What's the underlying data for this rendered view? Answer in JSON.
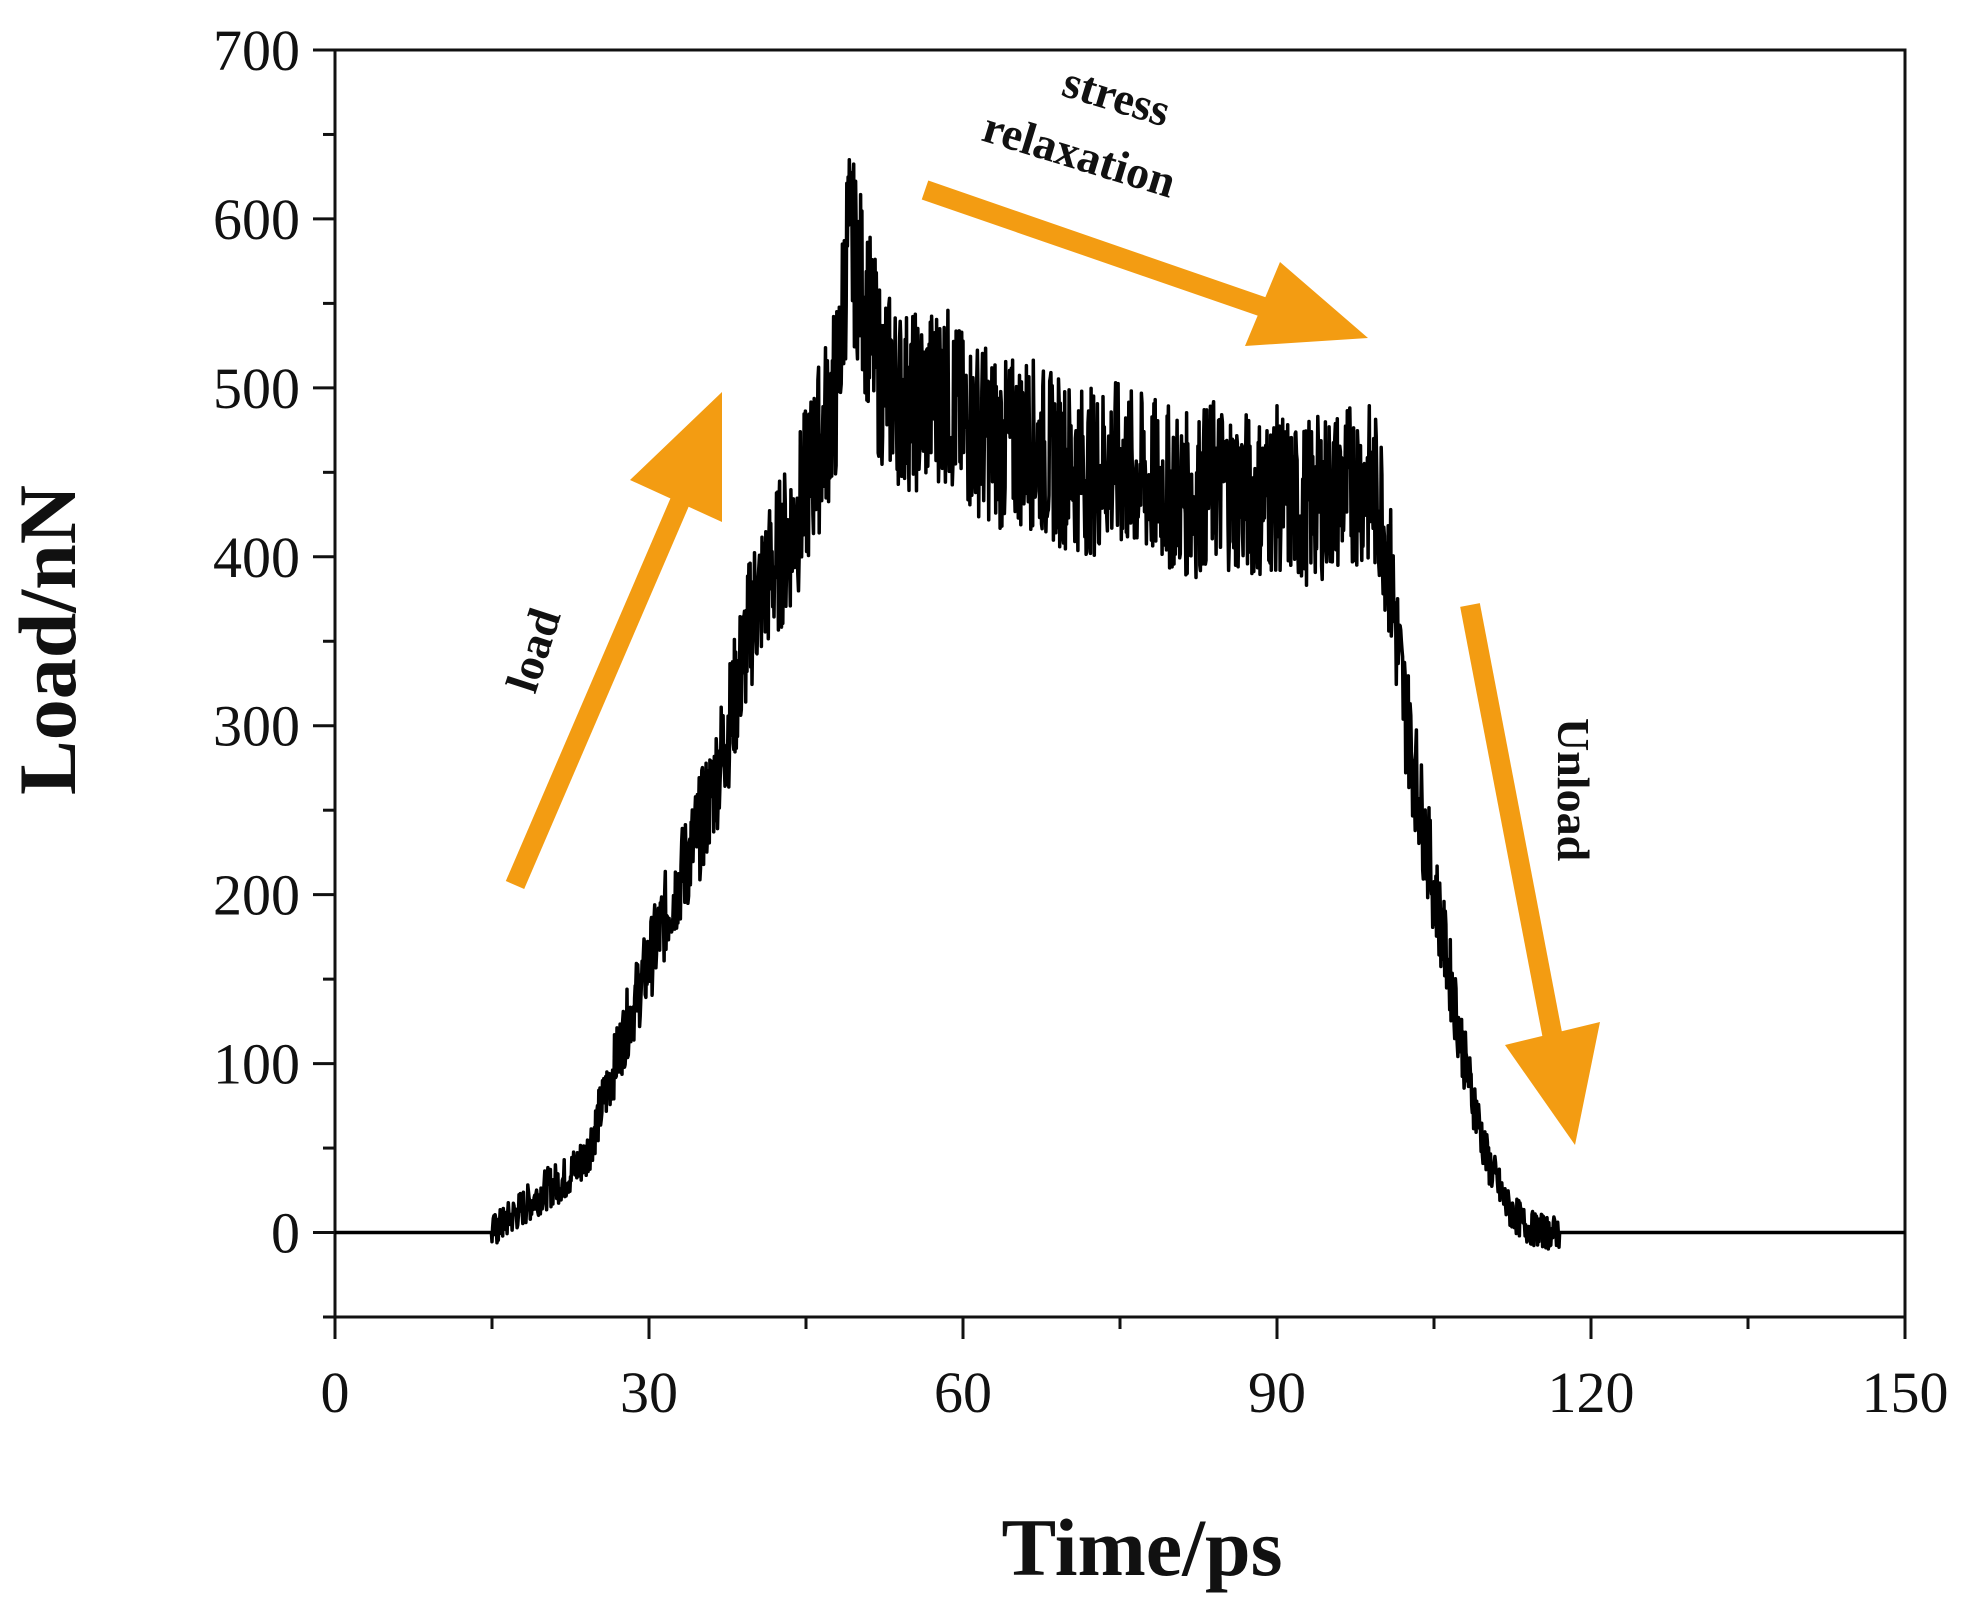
{
  "chart_data": {
    "type": "line",
    "title": "",
    "xlabel": "Time/ps",
    "ylabel": "Load/nN",
    "xlim": [
      0,
      150
    ],
    "ylim": [
      -50,
      700
    ],
    "xticks": [
      0,
      30,
      60,
      90,
      120,
      150
    ],
    "xtick_labels": [
      "0",
      "30",
      "60",
      "90",
      "120",
      "150"
    ],
    "yticks": [
      0,
      100,
      200,
      300,
      400,
      500,
      600,
      700
    ],
    "ytick_labels": [
      "0",
      "100",
      "200",
      "300",
      "400",
      "500",
      "600",
      "700"
    ],
    "grid": false,
    "legend": "none",
    "line_color": "#000000",
    "series": [
      {
        "name": "Load",
        "x": [
          0,
          10,
          15,
          16,
          18,
          20,
          22,
          24,
          26,
          28,
          30,
          32,
          34,
          36,
          38,
          40,
          42,
          44,
          46,
          48,
          49,
          50,
          51,
          52,
          54,
          56,
          58,
          60,
          62,
          64,
          66,
          68,
          70,
          72,
          74,
          76,
          78,
          80,
          82,
          84,
          86,
          88,
          90,
          92,
          94,
          96,
          98,
          99,
          100,
          101,
          102,
          104,
          106,
          108,
          110,
          112,
          114,
          116,
          118,
          120,
          130,
          140,
          150
        ],
        "values": [
          0,
          0,
          0,
          5,
          15,
          25,
          32,
          45,
          85,
          125,
          160,
          195,
          225,
          260,
          310,
          370,
          395,
          420,
          460,
          500,
          590,
          570,
          540,
          510,
          495,
          490,
          500,
          480,
          475,
          465,
          470,
          460,
          455,
          450,
          455,
          450,
          445,
          440,
          435,
          445,
          440,
          435,
          440,
          430,
          435,
          440,
          445,
          440,
          430,
          380,
          320,
          240,
          170,
          100,
          45,
          15,
          3,
          0,
          0,
          0,
          0,
          0,
          0
        ]
      }
    ]
  },
  "annotations": {
    "load": "load",
    "stress_line1": "stress",
    "stress_line2": "relaxation",
    "unload": "Unload"
  },
  "colors": {
    "arrow": "#F39C12",
    "axis": "#111111"
  }
}
